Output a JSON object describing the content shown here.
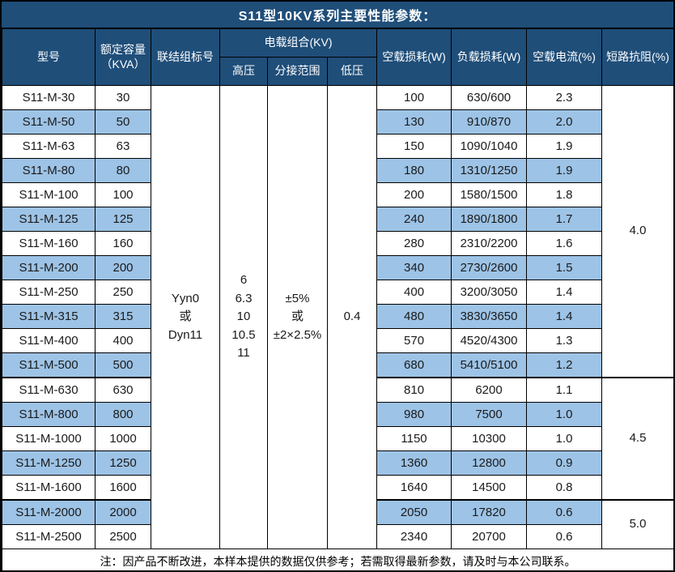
{
  "title": "S11型10KV系列主要性能参数：",
  "colors": {
    "header_bg": "#1F4E79",
    "stripe_bg": "#9DC3E6",
    "border": "#000000",
    "header_text": "#FFFFFF"
  },
  "header": {
    "model": "型号",
    "capacity": "额定容量\n（KVA）",
    "connection": "联结组标号",
    "voltage_group": "电载组合(KV)",
    "hv": "高压",
    "tap": "分接范围",
    "lv": "低压",
    "no_load_loss": "空载损耗(W)",
    "load_loss": "负载损耗(W)",
    "no_load_current": "空载电流(%)",
    "impedance": "短路抗阻(%)"
  },
  "merged": {
    "connection": "Yyn0\n或\nDyn11",
    "hv": "6\n6.3\n10\n10.5\n11",
    "tap": "±5%\n或\n±2×2.5%",
    "lv": "0.4"
  },
  "rows": [
    {
      "model": "S11-M-30",
      "capacity": "30",
      "no_load_loss": "100",
      "load_loss": "630/600",
      "no_load_current": "2.3"
    },
    {
      "model": "S11-M-50",
      "capacity": "50",
      "no_load_loss": "130",
      "load_loss": "910/870",
      "no_load_current": "2.0"
    },
    {
      "model": "S11-M-63",
      "capacity": "63",
      "no_load_loss": "150",
      "load_loss": "1090/1040",
      "no_load_current": "1.9"
    },
    {
      "model": "S11-M-80",
      "capacity": "80",
      "no_load_loss": "180",
      "load_loss": "1310/1250",
      "no_load_current": "1.9"
    },
    {
      "model": "S11-M-100",
      "capacity": "100",
      "no_load_loss": "200",
      "load_loss": "1580/1500",
      "no_load_current": "1.8"
    },
    {
      "model": "S11-M-125",
      "capacity": "125",
      "no_load_loss": "240",
      "load_loss": "1890/1800",
      "no_load_current": "1.7"
    },
    {
      "model": "S11-M-160",
      "capacity": "160",
      "no_load_loss": "280",
      "load_loss": "2310/2200",
      "no_load_current": "1.6"
    },
    {
      "model": "S11-M-200",
      "capacity": "200",
      "no_load_loss": "340",
      "load_loss": "2730/2600",
      "no_load_current": "1.5"
    },
    {
      "model": "S11-M-250",
      "capacity": "250",
      "no_load_loss": "400",
      "load_loss": "3200/3050",
      "no_load_current": "1.4"
    },
    {
      "model": "S11-M-315",
      "capacity": "315",
      "no_load_loss": "480",
      "load_loss": "3830/3650",
      "no_load_current": "1.4"
    },
    {
      "model": "S11-M-400",
      "capacity": "400",
      "no_load_loss": "570",
      "load_loss": "4520/4300",
      "no_load_current": "1.3"
    },
    {
      "model": "S11-M-500",
      "capacity": "500",
      "no_load_loss": "680",
      "load_loss": "5410/5100",
      "no_load_current": "1.2"
    },
    {
      "model": "S11-M-630",
      "capacity": "630",
      "no_load_loss": "810",
      "load_loss": "6200",
      "no_load_current": "1.1"
    },
    {
      "model": "S11-M-800",
      "capacity": "800",
      "no_load_loss": "980",
      "load_loss": "7500",
      "no_load_current": "1.0"
    },
    {
      "model": "S11-M-1000",
      "capacity": "1000",
      "no_load_loss": "1150",
      "load_loss": "10300",
      "no_load_current": "1.0"
    },
    {
      "model": "S11-M-1250",
      "capacity": "1250",
      "no_load_loss": "1360",
      "load_loss": "12800",
      "no_load_current": "0.9"
    },
    {
      "model": "S11-M-1600",
      "capacity": "1600",
      "no_load_loss": "1640",
      "load_loss": "14500",
      "no_load_current": "0.8"
    },
    {
      "model": "S11-M-2000",
      "capacity": "2000",
      "no_load_loss": "2050",
      "load_loss": "17820",
      "no_load_current": "0.6"
    },
    {
      "model": "S11-M-2500",
      "capacity": "2500",
      "no_load_loss": "2340",
      "load_loss": "20700",
      "no_load_current": "0.6"
    }
  ],
  "impedance_groups": [
    {
      "value": "4.0",
      "start": 0,
      "span": 12
    },
    {
      "value": "4.5",
      "start": 12,
      "span": 5
    },
    {
      "value": "5.0",
      "start": 17,
      "span": 2
    }
  ],
  "note": "注：因产品不断改进，本样本提供的数据仅供参考；若需取得最新参数，请及时与本公司联系。"
}
